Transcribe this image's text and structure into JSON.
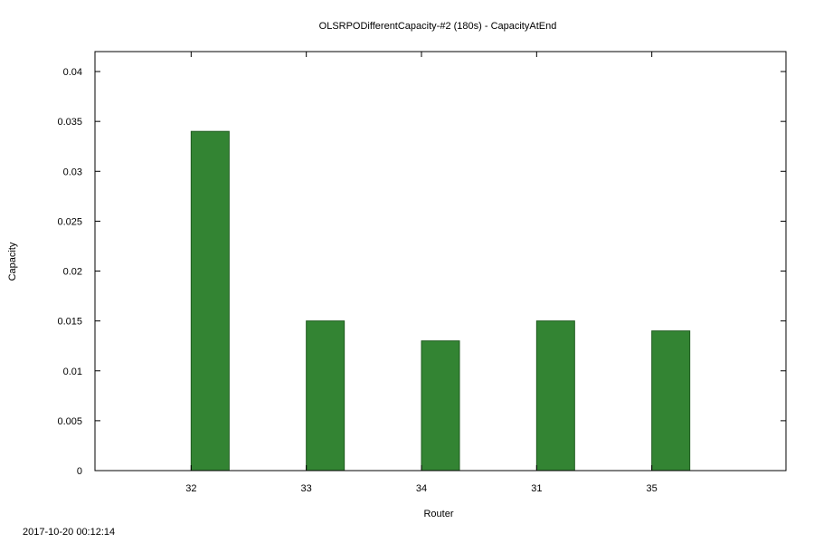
{
  "chart_data": {
    "type": "bar",
    "title": "OLSRPODifferentCapacity-#2 (180s) - CapacityAtEnd",
    "xlabel": "Router",
    "ylabel": "Capacity",
    "categories": [
      "32",
      "33",
      "34",
      "31",
      "35"
    ],
    "values": [
      0.034,
      0.015,
      0.013,
      0.015,
      0.014
    ],
    "ylim": [
      0,
      0.042
    ],
    "yticks": [
      "0",
      "0.005",
      "0.01",
      "0.015",
      "0.02",
      "0.025",
      "0.03",
      "0.035",
      "0.04"
    ],
    "ytick_values": [
      0,
      0.005,
      0.01,
      0.015,
      0.02,
      0.025,
      0.03,
      0.035,
      0.04
    ],
    "grid": false,
    "bar_color": "#338433",
    "bar_edge_color": "#1e5a1e"
  },
  "footer": {
    "timestamp": "2017-10-20 00:12:14"
  }
}
